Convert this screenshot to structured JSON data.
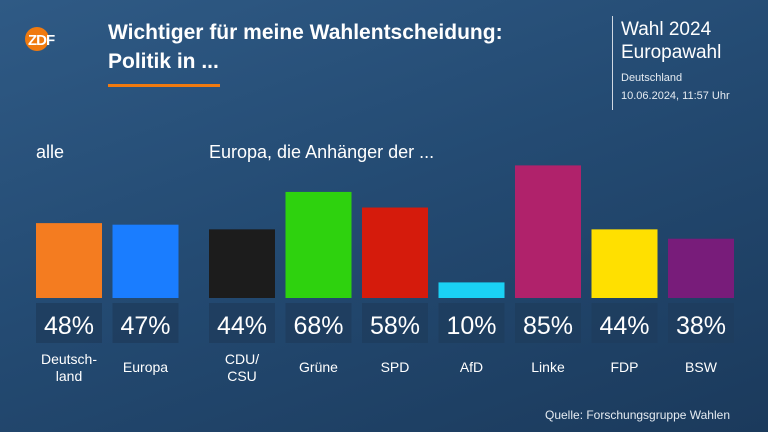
{
  "header": {
    "logo_text": "ZDF",
    "title_line1": "Wichtiger für meine Wahlentscheidung:",
    "title_line2": "Politik in ...",
    "side_title_line1": "Wahl 2024",
    "side_title_line2": "Europawahl",
    "region": "Deutschland",
    "timestamp": "10.06.2024, 11:57 Uhr"
  },
  "colors": {
    "accent": "#f07a0f",
    "label_box": "#1e3d5e"
  },
  "chart_data": {
    "type": "bar",
    "ylim": [
      0,
      100
    ],
    "groups": [
      {
        "label": "alle",
        "bars": [
          {
            "category": "Deutsch-\nland",
            "value": 48,
            "label": "48%",
            "color": "#f47c20"
          },
          {
            "category": "Europa",
            "value": 47,
            "label": "47%",
            "color": "#1a7dff"
          }
        ]
      },
      {
        "label": "Europa, die Anhänger der ...",
        "bars": [
          {
            "category": "CDU/\nCSU",
            "value": 44,
            "label": "44%",
            "color": "#1c1c1c"
          },
          {
            "category": "Grüne",
            "value": 68,
            "label": "68%",
            "color": "#2ed20e"
          },
          {
            "category": "SPD",
            "value": 58,
            "label": "58%",
            "color": "#d51b0c"
          },
          {
            "category": "AfD",
            "value": 10,
            "label": "10%",
            "color": "#1ad1f5"
          },
          {
            "category": "Linke",
            "value": 85,
            "label": "85%",
            "color": "#b0226b"
          },
          {
            "category": "FDP",
            "value": 44,
            "label": "44%",
            "color": "#ffe000"
          },
          {
            "category": "BSW",
            "value": 38,
            "label": "38%",
            "color": "#781c7a"
          }
        ]
      }
    ]
  },
  "footer": {
    "source": "Quelle: Forschungsgruppe Wahlen"
  }
}
